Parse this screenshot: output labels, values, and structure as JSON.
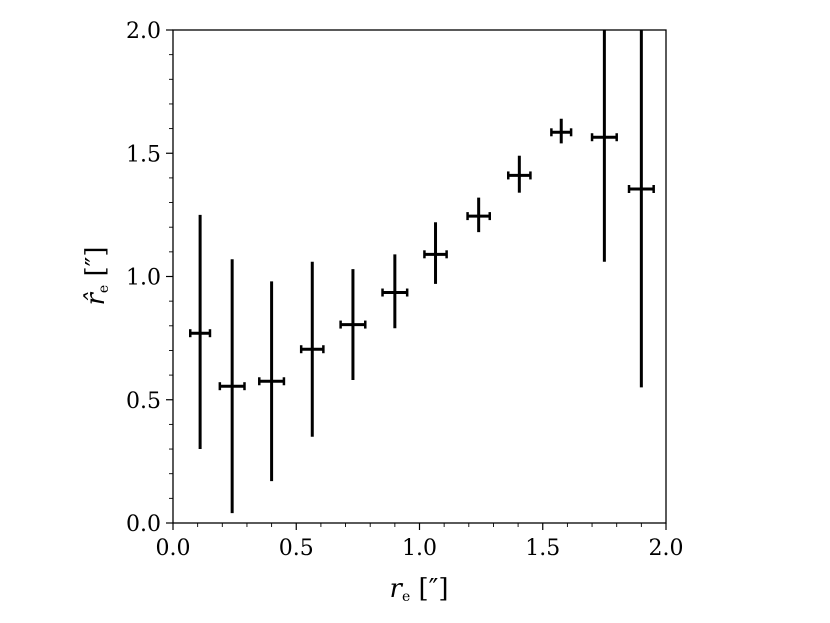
{
  "chart_data": {
    "type": "scatter",
    "style": "errorbar",
    "xlabel": "r",
    "xlabel_sub": "e",
    "xlabel_unit": " [″]",
    "ylabel": "r̂",
    "ylabel_sub": "e",
    "ylabel_unit": " [″]",
    "xlim": [
      0.0,
      2.0
    ],
    "ylim": [
      0.0,
      2.0
    ],
    "xticks": [
      "0.0",
      "0.5",
      "1.0",
      "1.5",
      "2.0"
    ],
    "yticks": [
      "0.0",
      "0.5",
      "1.0",
      "1.5",
      "2.0"
    ],
    "grid": false,
    "color": "#000000",
    "points": [
      {
        "x": 0.11,
        "y": 0.77,
        "xerr": 0.04,
        "ylow": 0.3,
        "yhigh": 1.25
      },
      {
        "x": 0.24,
        "y": 0.555,
        "xerr": 0.05,
        "ylow": 0.04,
        "yhigh": 1.07
      },
      {
        "x": 0.4,
        "y": 0.575,
        "xerr": 0.05,
        "ylow": 0.17,
        "yhigh": 0.98
      },
      {
        "x": 0.565,
        "y": 0.705,
        "xerr": 0.045,
        "ylow": 0.35,
        "yhigh": 1.06
      },
      {
        "x": 0.73,
        "y": 0.805,
        "xerr": 0.05,
        "ylow": 0.58,
        "yhigh": 1.03
      },
      {
        "x": 0.9,
        "y": 0.935,
        "xerr": 0.05,
        "ylow": 0.79,
        "yhigh": 1.09
      },
      {
        "x": 1.065,
        "y": 1.09,
        "xerr": 0.045,
        "ylow": 0.97,
        "yhigh": 1.22
      },
      {
        "x": 1.24,
        "y": 1.245,
        "xerr": 0.045,
        "ylow": 1.18,
        "yhigh": 1.32
      },
      {
        "x": 1.405,
        "y": 1.41,
        "xerr": 0.045,
        "ylow": 1.34,
        "yhigh": 1.49
      },
      {
        "x": 1.575,
        "y": 1.585,
        "xerr": 0.04,
        "ylow": 1.54,
        "yhigh": 1.64
      },
      {
        "x": 1.75,
        "y": 1.565,
        "xerr": 0.05,
        "ylow": 1.06,
        "yhigh": 2.0
      },
      {
        "x": 1.9,
        "y": 1.355,
        "xerr": 0.05,
        "ylow": 0.55,
        "yhigh": 2.0
      }
    ]
  }
}
